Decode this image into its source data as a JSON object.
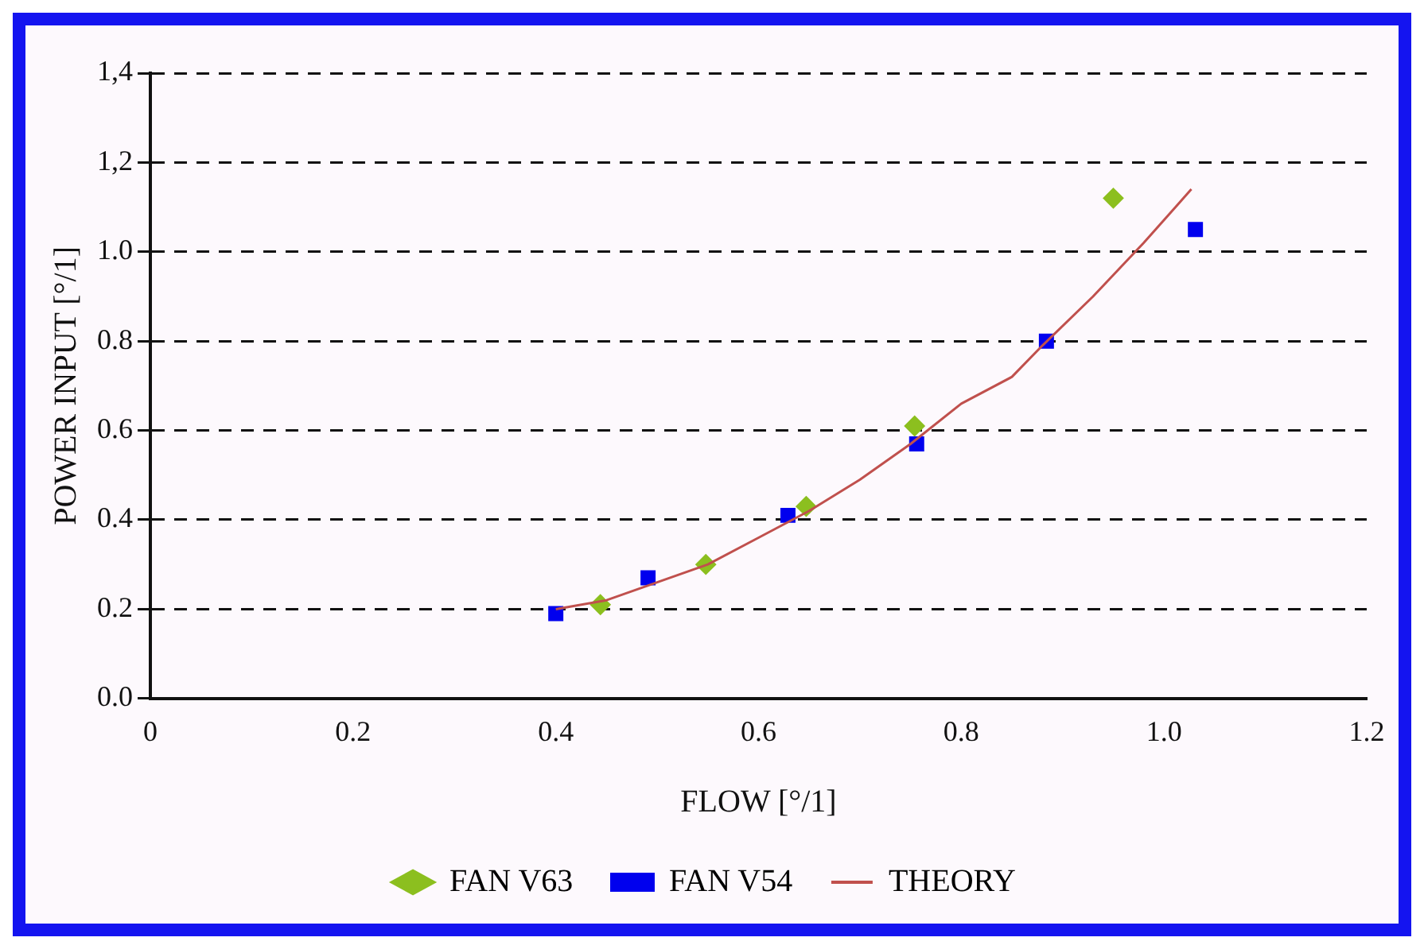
{
  "chart_data": {
    "type": "scatter",
    "xlabel": "FLOW [°/1]",
    "ylabel": "POWER INPUT [°/1]",
    "xlim": [
      0,
      1.2
    ],
    "xticks": [
      0,
      0.2,
      0.4,
      0.6,
      0.8,
      {
        "value": 1,
        "label": "1.0"
      },
      1.2
    ],
    "ylim": [
      0,
      1.4
    ],
    "yticks": [
      {
        "value": 0,
        "label": "0.0"
      },
      {
        "value": 0.2,
        "label": "0.2"
      },
      {
        "value": 0.4,
        "label": "0.4"
      },
      {
        "value": 0.6,
        "label": "0.6"
      },
      {
        "value": 0.8,
        "label": "0.8"
      },
      {
        "value": 1.0,
        "label": "1.0"
      },
      {
        "value": 1.2,
        "label": "1,2"
      },
      {
        "value": 1.4,
        "label": "1,4"
      }
    ],
    "grid": "y",
    "legend": "bottom",
    "series": [
      {
        "name": "FAN V63",
        "marker": "diamond",
        "color": "#8cbf1f",
        "x": [
          0.444,
          0.548,
          0.647,
          0.754,
          0.95
        ],
        "values": [
          0.21,
          0.3,
          0.43,
          0.61,
          1.12
        ]
      },
      {
        "name": "FAN V54",
        "marker": "square",
        "color": "#0000ee",
        "x": [
          0.4,
          0.491,
          0.629,
          0.756,
          0.884,
          1.031
        ],
        "values": [
          0.19,
          0.27,
          0.41,
          0.57,
          0.8,
          1.05
        ]
      },
      {
        "name": "THEORY",
        "type": "line",
        "marker": "none",
        "color": "#c0504d",
        "x": [
          0.4,
          0.45,
          0.5,
          0.55,
          0.6,
          0.65,
          0.7,
          0.75,
          0.8,
          0.85,
          0.88,
          0.93,
          0.98,
          1.027
        ],
        "values": [
          0.2,
          0.22,
          0.26,
          0.3,
          0.36,
          0.42,
          0.49,
          0.57,
          0.66,
          0.72,
          0.79,
          0.9,
          1.02,
          1.14
        ]
      }
    ]
  }
}
